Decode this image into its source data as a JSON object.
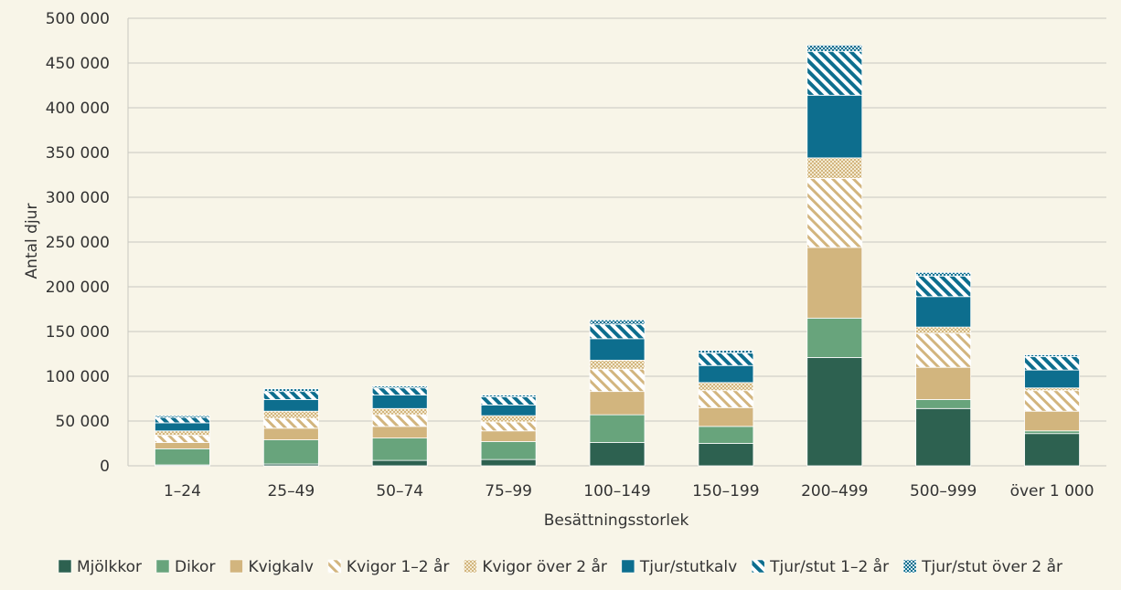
{
  "chart_data": {
    "type": "bar",
    "stacked": true,
    "xlabel": "Besättningsstorlek",
    "ylabel": "Antal djur",
    "ylim": [
      0,
      500000
    ],
    "yticks": [
      0,
      50000,
      100000,
      150000,
      200000,
      250000,
      300000,
      350000,
      400000,
      450000,
      500000
    ],
    "ytick_labels": [
      "0",
      "50 000",
      "100 000",
      "150 000",
      "200 000",
      "250 000",
      "300 000",
      "350 000",
      "400 000",
      "450 000",
      "500 000"
    ],
    "grid": "horizontal",
    "legend_position": "bottom",
    "categories": [
      "1–24",
      "25–49",
      "50–74",
      "75–99",
      "100–149",
      "150–199",
      "200–499",
      "500–999",
      "över 1 000"
    ],
    "series": [
      {
        "name": "Mjölkkor",
        "color": "#2d6150",
        "pattern": "solid",
        "values": [
          1000,
          2000,
          6000,
          7000,
          26000,
          25000,
          121000,
          64000,
          36000
        ]
      },
      {
        "name": "Dikor",
        "color": "#68a47c",
        "pattern": "solid",
        "values": [
          18000,
          27000,
          25000,
          20000,
          31000,
          19000,
          44000,
          10000,
          3000
        ]
      },
      {
        "name": "Kvigkalv",
        "color": "#d2b57e",
        "pattern": "solid",
        "values": [
          7000,
          13000,
          13000,
          12000,
          26000,
          21000,
          79000,
          36000,
          22000
        ]
      },
      {
        "name": "Kvigor 1–2 år",
        "color": "#d2b57e",
        "pattern": "diagonal",
        "values": [
          8000,
          11000,
          13000,
          10000,
          25000,
          19000,
          77000,
          38000,
          23000
        ]
      },
      {
        "name": "Kvigor över 2 år",
        "color": "#d2b57e",
        "pattern": "dots",
        "values": [
          5000,
          8000,
          7000,
          7000,
          10000,
          9000,
          23000,
          7000,
          3000
        ]
      },
      {
        "name": "Tjur/stutkalv",
        "color": "#0d6e8e",
        "pattern": "solid",
        "values": [
          9000,
          13000,
          15000,
          12000,
          24000,
          19000,
          70000,
          34000,
          20000
        ]
      },
      {
        "name": "Tjur/stut 1–2 år",
        "color": "#0d6e8e",
        "pattern": "diagonal",
        "values": [
          6000,
          9000,
          8000,
          9000,
          16000,
          14000,
          49000,
          23000,
          15000
        ]
      },
      {
        "name": "Tjur/stut över 2 år",
        "color": "#0d6e8e",
        "pattern": "dots",
        "values": [
          2000,
          3000,
          2000,
          2000,
          5000,
          3000,
          7000,
          4000,
          2000
        ]
      }
    ]
  }
}
